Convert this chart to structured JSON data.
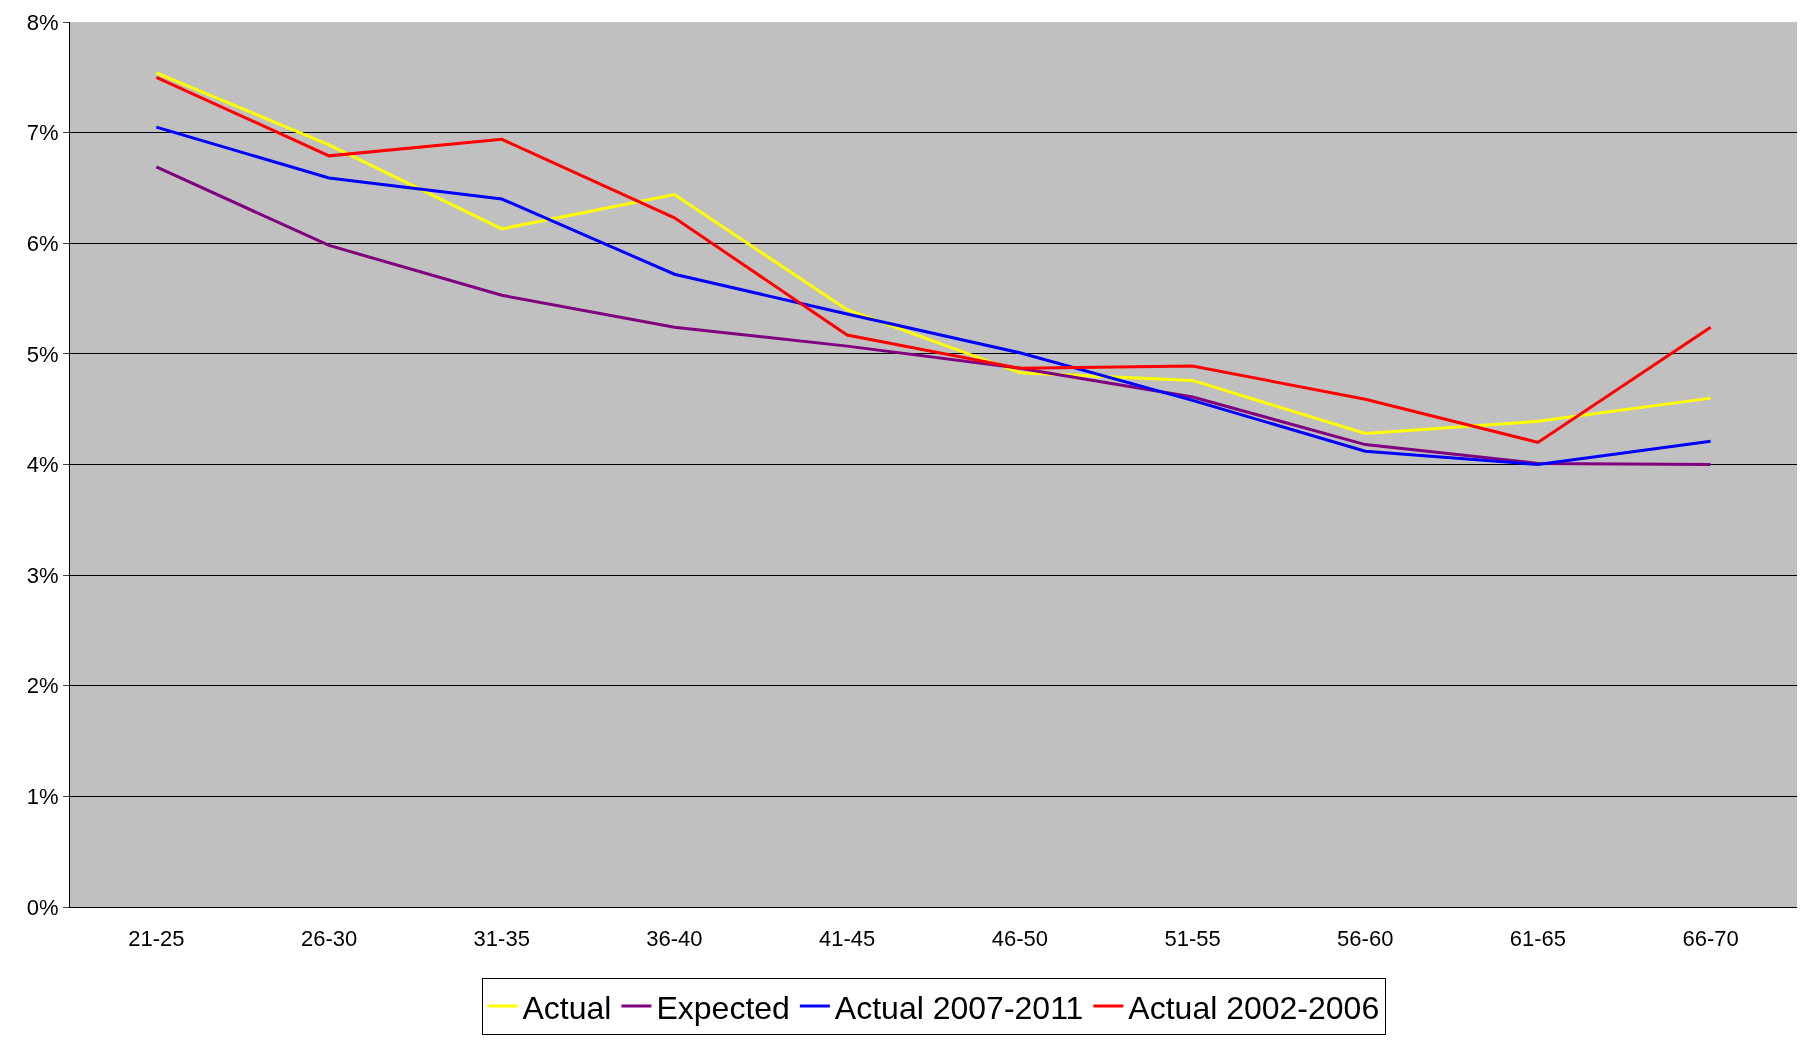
{
  "chart_data": {
    "type": "line",
    "categories": [
      "21-25",
      "26-30",
      "31-35",
      "36-40",
      "41-45",
      "46-50",
      "51-55",
      "56-60",
      "61-65",
      "66-70"
    ],
    "series": [
      {
        "name": "Actual",
        "color": "#ffff00",
        "values": [
          7.54,
          6.89,
          6.13,
          6.44,
          5.4,
          4.83,
          4.76,
          4.28,
          4.39,
          4.6
        ]
      },
      {
        "name": "Expected",
        "color": "#800080",
        "values": [
          6.69,
          5.98,
          5.53,
          5.24,
          5.07,
          4.87,
          4.61,
          4.18,
          4.01,
          4.0
        ]
      },
      {
        "name": "Actual 2007-2011",
        "color": "#0000ff",
        "values": [
          7.05,
          6.59,
          6.4,
          5.72,
          5.36,
          5.01,
          4.58,
          4.12,
          4.0,
          4.21
        ]
      },
      {
        "name": "Actual 2002-2006",
        "color": "#ff0000",
        "values": [
          7.5,
          6.79,
          6.94,
          6.23,
          5.17,
          4.87,
          4.89,
          4.59,
          4.2,
          5.24
        ]
      }
    ],
    "ylim": [
      0,
      8
    ],
    "yticks": [
      {
        "value": 0,
        "label": "0%"
      },
      {
        "value": 1,
        "label": "1%"
      },
      {
        "value": 2,
        "label": "2%"
      },
      {
        "value": 3,
        "label": "3%"
      },
      {
        "value": 4,
        "label": "4%"
      },
      {
        "value": 5,
        "label": "5%"
      },
      {
        "value": 6,
        "label": "6%"
      },
      {
        "value": 7,
        "label": "7%"
      },
      {
        "value": 8,
        "label": "8%"
      }
    ],
    "grid": "y",
    "legend": "bottom",
    "marker": "none",
    "line_style": "solid"
  }
}
